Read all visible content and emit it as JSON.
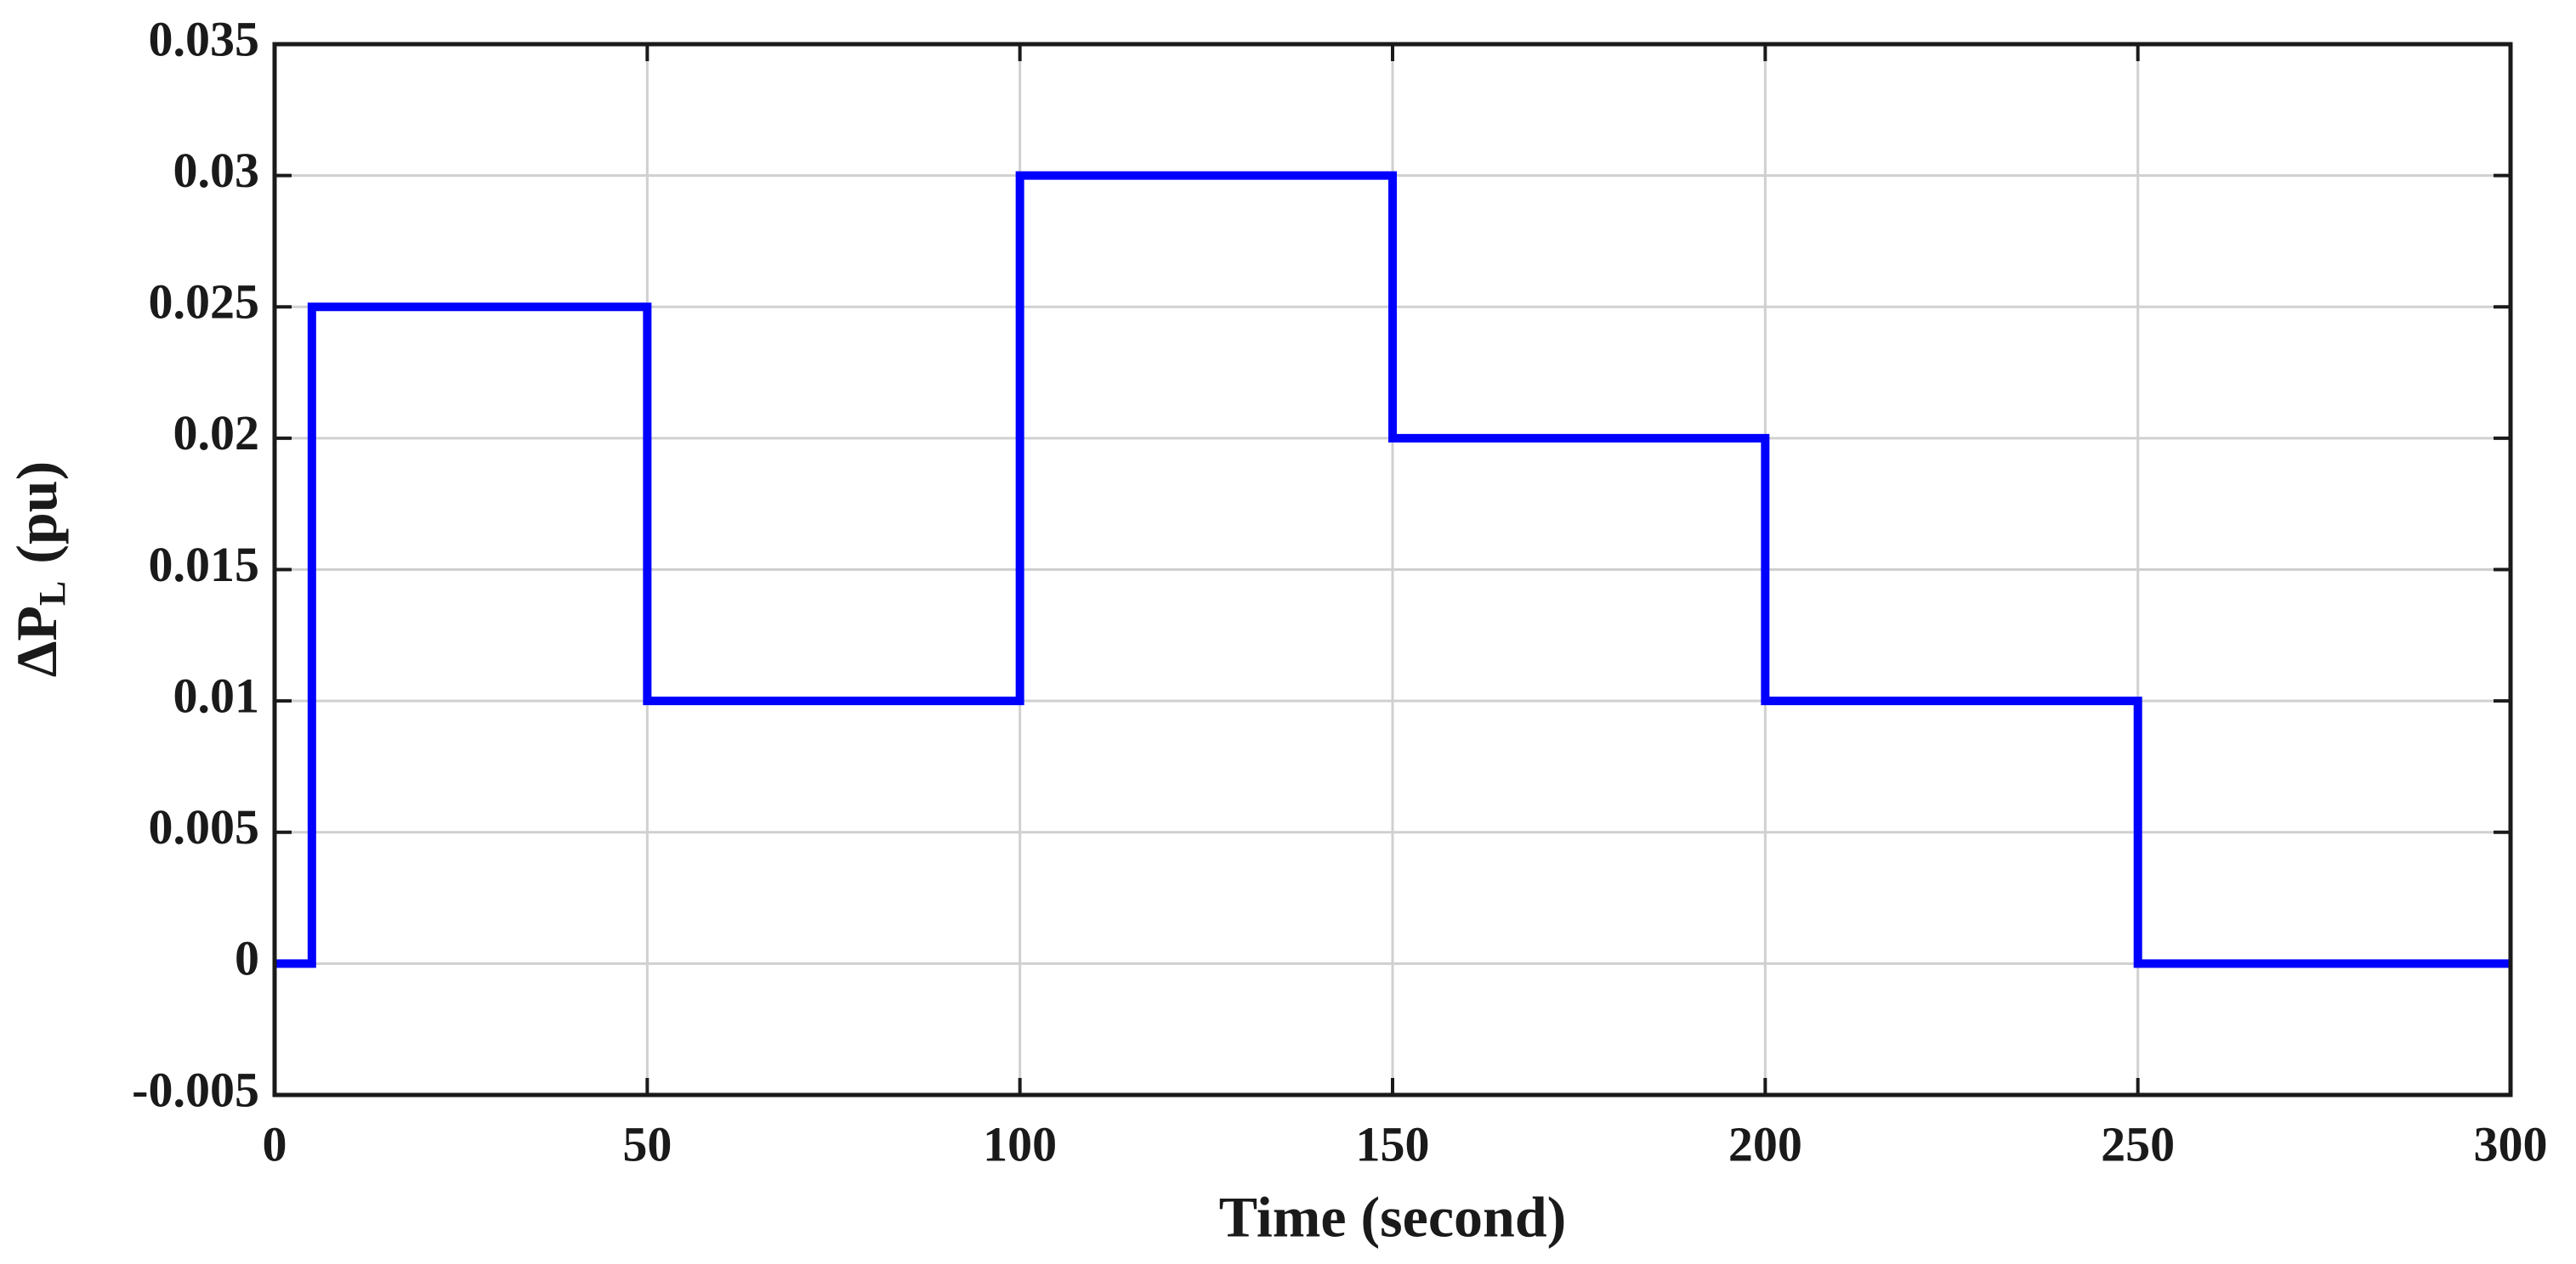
{
  "chart_data": {
    "type": "line",
    "xlabel": "Time (second)",
    "ylabel": [
      "ΔP",
      "L",
      "(pu)"
    ],
    "x": [
      0,
      5,
      5,
      50,
      50,
      100,
      100,
      150,
      150,
      200,
      200,
      250,
      250,
      300
    ],
    "values": [
      0,
      0,
      0.025,
      0.025,
      0.01,
      0.01,
      0.03,
      0.03,
      0.02,
      0.02,
      0.01,
      0.01,
      0,
      0
    ],
    "color": "#0000ff",
    "xlim": [
      0,
      300
    ],
    "xticks": [
      0,
      50,
      100,
      150,
      200,
      250,
      300
    ],
    "ylim": [
      -0.005,
      0.035
    ],
    "yticks": [
      -0.005,
      0,
      0.005,
      0.01,
      0.015,
      0.02,
      0.025,
      0.03,
      0.035
    ],
    "grid": true
  }
}
